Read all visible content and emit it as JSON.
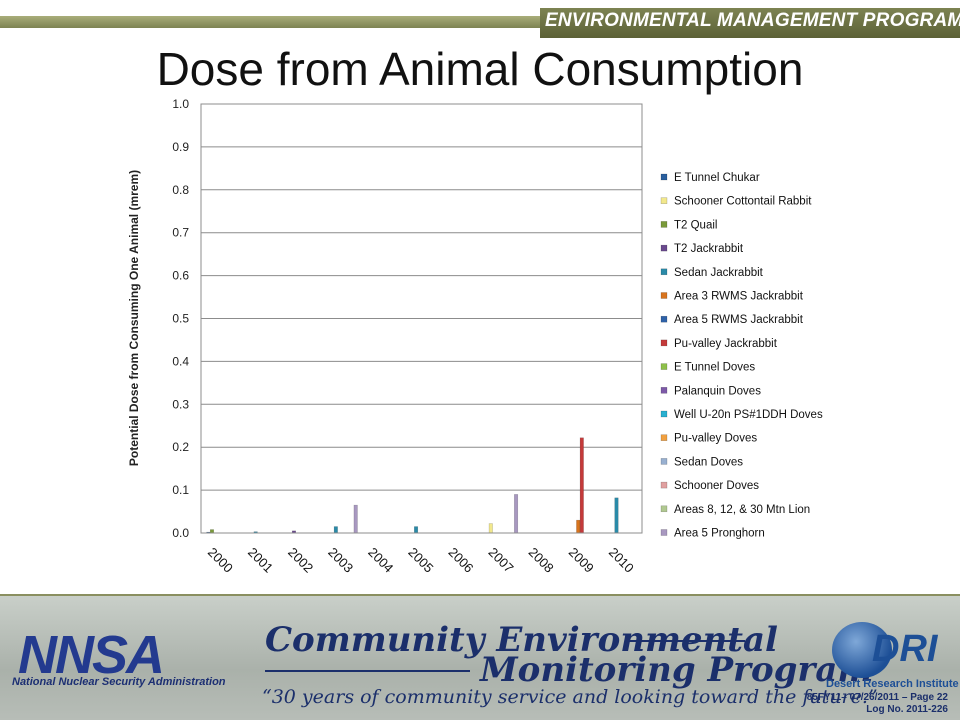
{
  "header": {
    "program": "ENVIRONMENTAL MANAGEMENT PROGRAM",
    "title": "Dose from Animal Consumption"
  },
  "chart_data": {
    "type": "bar",
    "title": "",
    "xlabel": "",
    "ylabel": "Potential Dose from Consuming One Animal (mrem)",
    "ylim": [
      0,
      1.0
    ],
    "yticks": [
      "0.0",
      "0.1",
      "0.2",
      "0.3",
      "0.4",
      "0.5",
      "0.6",
      "0.7",
      "0.8",
      "0.9",
      "1.0"
    ],
    "grid": true,
    "legend_position": "right",
    "categories": [
      "2000",
      "2001",
      "2002",
      "2003",
      "2004",
      "2005",
      "2006",
      "2007",
      "2008",
      "2009",
      "2010"
    ],
    "series": [
      {
        "name": "E Tunnel Chukar",
        "color": "#2a5f9e",
        "values": [
          0.002,
          0,
          0,
          0,
          0,
          0,
          0,
          0,
          0,
          0,
          0
        ]
      },
      {
        "name": "Schooner Cottontail Rabbit",
        "color": "#f2e88c",
        "values": [
          0,
          0,
          0,
          0,
          0,
          0,
          0,
          0.022,
          0,
          0,
          0
        ]
      },
      {
        "name": "T2 Quail",
        "color": "#7a9a3a",
        "values": [
          0.008,
          0,
          0,
          0,
          0,
          0,
          0,
          0,
          0,
          0,
          0
        ]
      },
      {
        "name": "T2 Jackrabbit",
        "color": "#6a4a8e",
        "values": [
          0,
          0,
          0.005,
          0,
          0,
          0,
          0,
          0,
          0,
          0,
          0
        ]
      },
      {
        "name": "Sedan Jackrabbit",
        "color": "#2a8aa8",
        "values": [
          0,
          0.003,
          0,
          0.015,
          0,
          0.015,
          0,
          0,
          0,
          0,
          0.082
        ]
      },
      {
        "name": "Area 3 RWMS Jackrabbit",
        "color": "#d8741e",
        "values": [
          0,
          0,
          0,
          0,
          0,
          0,
          0,
          0,
          0,
          0.03,
          0
        ]
      },
      {
        "name": "Area 5 RWMS Jackrabbit",
        "color": "#2f62a8",
        "values": [
          0,
          0,
          0,
          0,
          0,
          0,
          0,
          0,
          0,
          0,
          0
        ]
      },
      {
        "name": "Pu-valley Jackrabbit",
        "color": "#c43a3a",
        "values": [
          0,
          0,
          0,
          0,
          0,
          0,
          0,
          0,
          0,
          0.222,
          0
        ]
      },
      {
        "name": "E Tunnel Doves",
        "color": "#8ec04a",
        "values": [
          0,
          0,
          0,
          0,
          0,
          0,
          0,
          0,
          0,
          0,
          0
        ]
      },
      {
        "name": "Palanquin Doves",
        "color": "#7d5aa8",
        "values": [
          0,
          0,
          0,
          0,
          0,
          0,
          0,
          0,
          0,
          0,
          0
        ]
      },
      {
        "name": "Well U-20n PS#1DDH Doves",
        "color": "#2ab0d0",
        "values": [
          0,
          0,
          0,
          0,
          0,
          0,
          0,
          0,
          0,
          0,
          0
        ]
      },
      {
        "name": "Pu-valley Doves",
        "color": "#f0a040",
        "values": [
          0,
          0,
          0,
          0,
          0,
          0,
          0,
          0,
          0,
          0,
          0
        ]
      },
      {
        "name": "Sedan Doves",
        "color": "#98b0d0",
        "values": [
          0,
          0,
          0,
          0,
          0,
          0,
          0,
          0,
          0,
          0,
          0
        ]
      },
      {
        "name": "Schooner Doves",
        "color": "#e0a0a0",
        "values": [
          0,
          0,
          0,
          0,
          0,
          0,
          0,
          0,
          0,
          0,
          0
        ]
      },
      {
        "name": "Areas 8, 12, & 30 Mtn Lion",
        "color": "#b0c890",
        "values": [
          0,
          0,
          0,
          0,
          0,
          0,
          0,
          0,
          0,
          0,
          0
        ]
      },
      {
        "name": "Area 5 Pronghorn",
        "color": "#a898c0",
        "values": [
          0,
          0,
          0,
          0.065,
          0,
          0,
          0,
          0.09,
          0,
          0,
          0
        ]
      }
    ]
  },
  "footer": {
    "nnsa_logo": "NNSA",
    "nnsa_name": "National Nuclear Security Administration",
    "cemp_line1": "Community Environmental",
    "cemp_line2": "Monitoring Program",
    "cemp_quote": "“30 years of community service and looking toward the future.”",
    "dri_logo": "DRI",
    "dri_name": "Desert Research Institute",
    "page_ref": "85FY11– 07/26/2011 – Page 22",
    "log_no": "Log No. 2011-226"
  }
}
